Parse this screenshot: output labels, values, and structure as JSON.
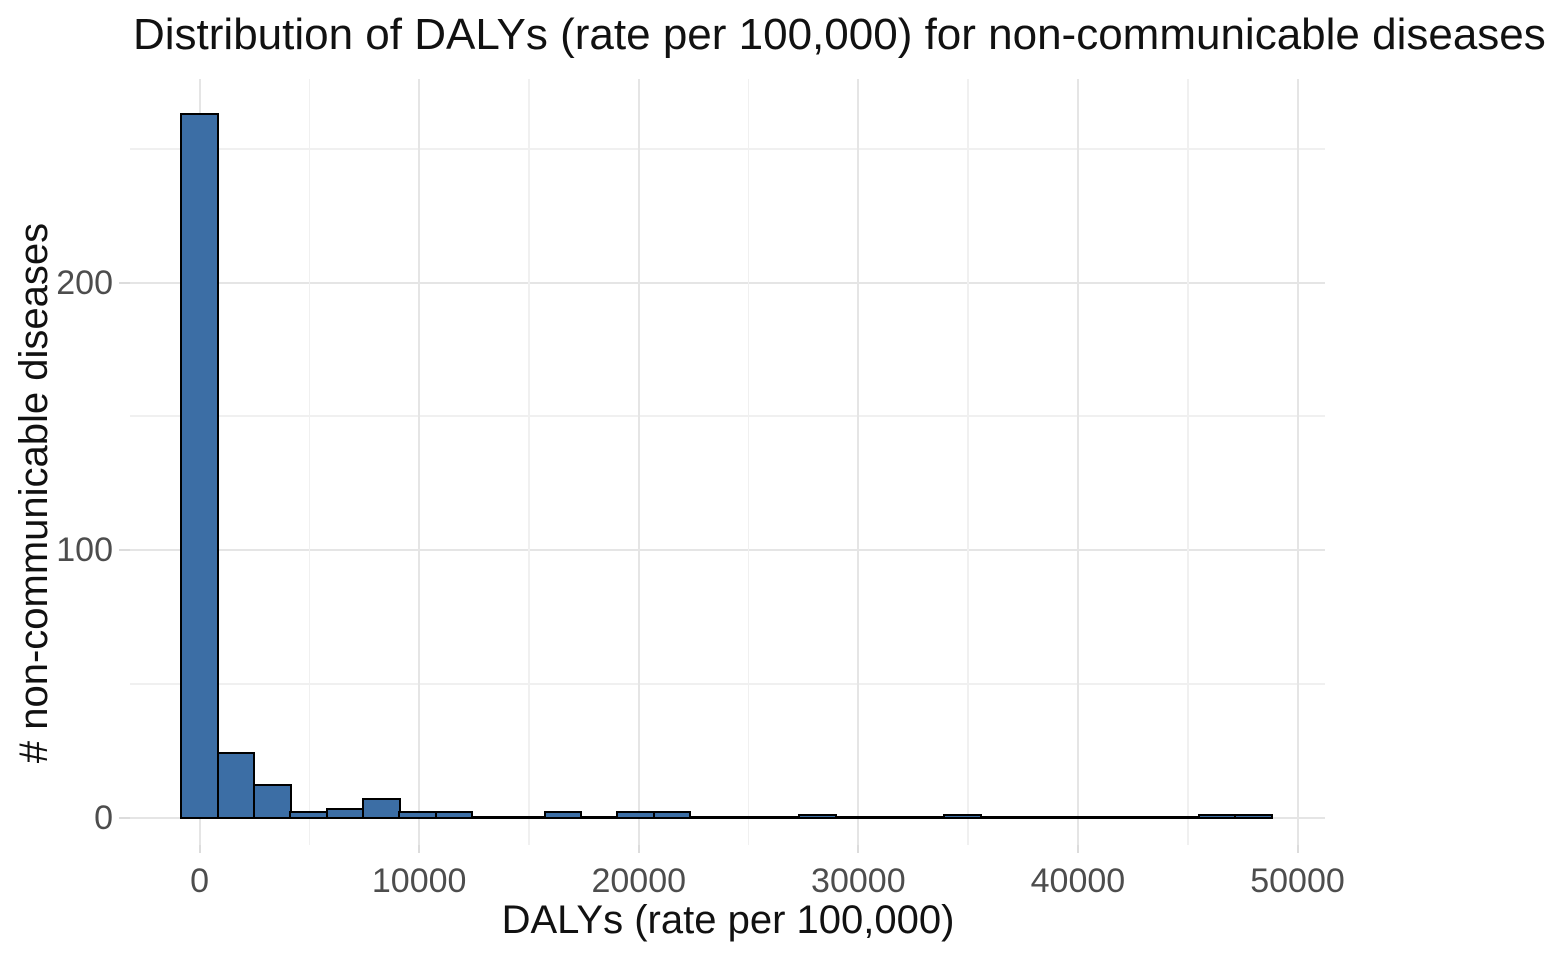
{
  "title": "Distribution of DALYs (rate per 100,000) for non-communicable diseases",
  "chart_data": {
    "type": "bar",
    "subtype": "histogram",
    "title": "Distribution of DALYs (rate per 100,000) for non-communicable diseases",
    "xlabel": "DALYs (rate per 100,000)",
    "ylabel": "# non-communicable diseases",
    "x_ticks": [
      0,
      10000,
      20000,
      30000,
      40000,
      50000
    ],
    "x_minor_ticks": [
      5000,
      15000,
      25000,
      35000,
      45000
    ],
    "y_ticks": [
      0,
      100,
      200
    ],
    "y_minor_ticks": [
      50,
      150,
      250
    ],
    "xlim": [
      -3300,
      51700
    ],
    "ylim": [
      -10,
      277
    ],
    "grid": "on",
    "legend": "none",
    "bin_width": 1655,
    "bin_centers": [
      0,
      1655,
      3310,
      4965,
      6620,
      8275,
      9930,
      11585,
      13240,
      14895,
      16550,
      18205,
      19860,
      21515,
      23170,
      24825,
      26480,
      28135,
      29790,
      31445,
      33100,
      34755,
      36410,
      38065,
      39720,
      41375,
      43030,
      44685,
      46340,
      47995
    ],
    "counts": [
      263,
      24,
      12,
      2,
      3,
      7,
      2,
      2,
      0,
      0,
      2,
      0,
      2,
      2,
      0,
      0,
      0,
      1,
      0,
      0,
      0,
      1,
      0,
      0,
      0,
      0,
      0,
      0,
      1,
      1
    ],
    "colors": {
      "bar_fill": "#3C6EA5",
      "bar_stroke": "#000000",
      "grid_major": "#e5e5e5",
      "grid_minor": "#f0f0f0",
      "tick_label": "#4d4d4d",
      "title_text": "#111111"
    }
  }
}
